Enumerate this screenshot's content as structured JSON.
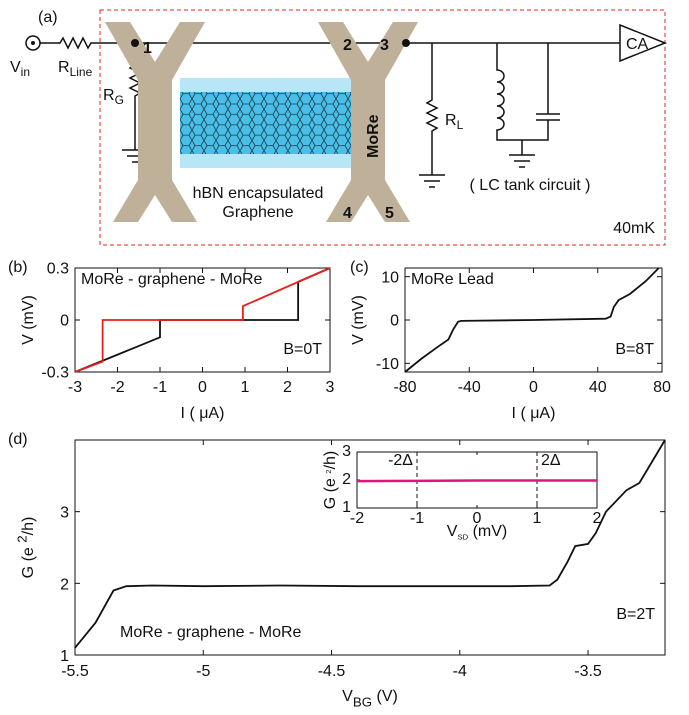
{
  "diagram": {
    "panel": "(a)",
    "v_in": {
      "text": "V",
      "sub": "in"
    },
    "r_line": {
      "text": "R",
      "sub": "Line"
    },
    "r_g": {
      "text": "R",
      "sub": "G"
    },
    "r_l": {
      "text": "R",
      "sub": "L"
    },
    "terminals": [
      "1",
      "2",
      "3",
      "4",
      "5"
    ],
    "electrode": "MoRe",
    "sample": [
      "hBN encapsulated",
      "Graphene"
    ],
    "amplifier": "CA",
    "tank": "( LC tank circuit )",
    "temperature": "40mK"
  },
  "chart_data": [
    {
      "type": "line",
      "panel": "(b)",
      "xlabel": "I ( μA)",
      "ylabel": "V (mV)",
      "xlim": [
        -3,
        3
      ],
      "xticks": [
        -3,
        -2,
        -1,
        0,
        1,
        2,
        3
      ],
      "ylim": [
        -0.3,
        0.3
      ],
      "yticks": [
        -0.3,
        0,
        0.3
      ],
      "annotations": [
        "MoRe - graphene - MoRe",
        "B=0T"
      ],
      "series": [
        {
          "color": "#111111",
          "x": [
            -3,
            -1,
            -1,
            2.25,
            2.25,
            3
          ],
          "values": [
            -0.3,
            -0.1,
            0,
            0,
            0.22,
            0.3
          ]
        },
        {
          "color": "#e8201c",
          "x": [
            -3,
            -2.35,
            -2.35,
            0.95,
            0.95,
            3
          ],
          "values": [
            -0.3,
            -0.24,
            0,
            0,
            0.08,
            0.3
          ]
        }
      ]
    },
    {
      "type": "line",
      "panel": "(c)",
      "xlabel": "I ( μA)",
      "ylabel": "V (mV)",
      "xlim": [
        -80,
        80
      ],
      "xticks": [
        -80,
        -40,
        0,
        40,
        80
      ],
      "ylim": [
        -12,
        12
      ],
      "yticks": [
        -10,
        0,
        10
      ],
      "annotations": [
        "MoRe Lead",
        "B=8T"
      ],
      "series": [
        {
          "color": "#111111",
          "x": [
            -80,
            -70,
            -60,
            -53,
            -50,
            -47,
            -45,
            0,
            45,
            48,
            50,
            53,
            60,
            70,
            78
          ],
          "values": [
            -12,
            -9,
            -6.3,
            -4.5,
            -2.2,
            -0.4,
            -0.2,
            0,
            0.3,
            0.8,
            3,
            4.6,
            6,
            9,
            12
          ]
        }
      ]
    },
    {
      "type": "line",
      "panel": "(d)",
      "xlabel": {
        "text": "V",
        "sub": "BG",
        "unit": " (V)"
      },
      "ylabel": {
        "text": "G (e ",
        "sup": "2",
        "unit": "/h)"
      },
      "xlim": [
        -5.5,
        -3.2
      ],
      "xticks": [
        -5.5,
        -5,
        -4.5,
        -4,
        -3.5
      ],
      "ylim": [
        1,
        4
      ],
      "yticks": [
        1,
        2,
        3
      ],
      "annotations": [
        "MoRe - graphene - MoRe",
        "B=2T"
      ],
      "series": [
        {
          "color": "#111111",
          "x": [
            -5.5,
            -5.42,
            -5.35,
            -5.3,
            -5.2,
            -5.0,
            -4.7,
            -4.4,
            -4.1,
            -3.8,
            -3.65,
            -3.62,
            -3.58,
            -3.55,
            -3.5,
            -3.47,
            -3.43,
            -3.35,
            -3.3,
            -3.25,
            -3.2
          ],
          "values": [
            1.1,
            1.45,
            1.9,
            1.96,
            1.97,
            1.96,
            1.97,
            1.96,
            1.96,
            1.96,
            1.97,
            2.05,
            2.3,
            2.52,
            2.55,
            2.7,
            3.0,
            3.3,
            3.4,
            3.7,
            4.0
          ]
        }
      ]
    },
    {
      "type": "line",
      "xlabel": {
        "text": "V",
        "sub": "SD",
        "unit": " (mV)"
      },
      "ylabel": {
        "text": "G (e ",
        "sup": "2",
        "unit": "/h)"
      },
      "xlim": [
        -2,
        2
      ],
      "xticks": [
        -2,
        -1,
        0,
        1,
        2
      ],
      "ylim": [
        1,
        3
      ],
      "yticks": [
        1,
        2,
        3
      ],
      "vlines": [
        {
          "value": -1,
          "label": "-2Δ"
        },
        {
          "value": 1,
          "label": "2Δ"
        }
      ],
      "series": [
        {
          "color": "#e0157a",
          "x": [
            -2,
            -1,
            0,
            1,
            2
          ],
          "values": [
            1.96,
            1.97,
            1.98,
            1.98,
            1.98
          ]
        }
      ]
    }
  ]
}
